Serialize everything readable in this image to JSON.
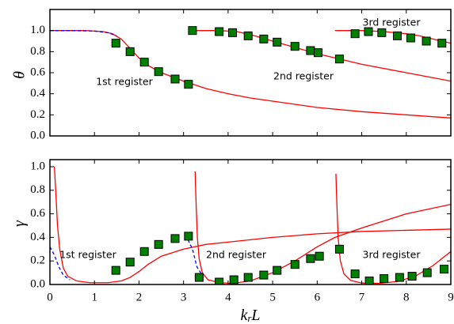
{
  "chart_data": [
    {
      "type": "line",
      "ylabel": "θ",
      "xlim": [
        0,
        9
      ],
      "ylim": [
        0,
        1.2
      ],
      "xticks": [
        0,
        1,
        2,
        3,
        4,
        5,
        6,
        7,
        8,
        9
      ],
      "yticks": [
        {
          "value": 0,
          "label": "0.0"
        },
        {
          "value": 0.2,
          "label": "0.2"
        },
        {
          "value": 0.4,
          "label": "0.4"
        },
        {
          "value": 0.6,
          "label": "0.6"
        },
        {
          "value": 0.8,
          "label": "0.8"
        },
        {
          "value": 1.0,
          "label": "1.0"
        }
      ],
      "annotations": [
        "1st register",
        "2nd register",
        "3rd register"
      ],
      "series": [
        {
          "style": "solid",
          "color": "#ff0000",
          "x": [
            0,
            0.8,
            1.2,
            1.4,
            1.6,
            1.8,
            2.0,
            2.2,
            2.5,
            3.0,
            3.5,
            4.0,
            4.5,
            5.0,
            5.5,
            6.0,
            7.0,
            8.0,
            9.0
          ],
          "values": [
            1.0,
            1.0,
            0.99,
            0.97,
            0.92,
            0.83,
            0.74,
            0.67,
            0.6,
            0.52,
            0.45,
            0.4,
            0.36,
            0.33,
            0.3,
            0.27,
            0.23,
            0.2,
            0.17
          ]
        },
        {
          "style": "dashed",
          "color": "#0000ff",
          "x": [
            0,
            0.5,
            1.0,
            1.3,
            1.5
          ],
          "values": [
            1.0,
            1.0,
            0.995,
            0.98,
            0.95
          ]
        },
        {
          "style": "solid",
          "color": "#ff0000",
          "x": [
            3.2,
            3.8,
            4.2,
            4.6,
            5.0,
            5.5,
            6.0,
            6.5,
            7.0,
            8.0,
            9.0
          ],
          "values": [
            1.0,
            1.0,
            0.99,
            0.95,
            0.9,
            0.84,
            0.78,
            0.73,
            0.68,
            0.6,
            0.52
          ]
        },
        {
          "style": "solid",
          "color": "#ff0000",
          "x": [
            6.4,
            7.0,
            7.5,
            8.0,
            8.3,
            8.6,
            9.0
          ],
          "values": [
            1.0,
            1.0,
            0.99,
            0.97,
            0.95,
            0.92,
            0.88
          ]
        },
        {
          "style": "square",
          "color": "#008000",
          "x": [
            1.48,
            1.8,
            2.12,
            2.44,
            2.81,
            3.11,
            3.2,
            3.8,
            4.1,
            4.45,
            4.8,
            5.1,
            5.5,
            5.85,
            6.02,
            6.5,
            6.85,
            7.15,
            7.45,
            7.8,
            8.1,
            8.45,
            8.8
          ],
          "values": [
            0.88,
            0.8,
            0.7,
            0.61,
            0.54,
            0.49,
            1.0,
            0.99,
            0.98,
            0.95,
            0.92,
            0.89,
            0.85,
            0.81,
            0.79,
            0.73,
            0.97,
            0.99,
            0.98,
            0.95,
            0.93,
            0.9,
            0.88
          ]
        }
      ]
    },
    {
      "type": "line",
      "ylabel": "γ",
      "xlabel": {
        "base": "k",
        "sub": "r",
        "rest": "L"
      },
      "xlim": [
        0,
        9
      ],
      "ylim": [
        0,
        1.06
      ],
      "xticks": [
        0,
        1,
        2,
        3,
        4,
        5,
        6,
        7,
        8,
        9
      ],
      "yticks": [
        {
          "value": 0,
          "label": "0.0"
        },
        {
          "value": 0.2,
          "label": "0.2"
        },
        {
          "value": 0.4,
          "label": "0.4"
        },
        {
          "value": 0.6,
          "label": "0.6"
        },
        {
          "value": 0.8,
          "label": "0.8"
        },
        {
          "value": 1.0,
          "label": "1.0"
        }
      ],
      "annotations": [
        "1st register",
        "2nd register",
        "3rd register"
      ],
      "series": [
        {
          "style": "solid",
          "color": "#ff0000",
          "x": [
            0.1,
            0.13,
            0.17,
            0.22,
            0.3,
            0.4,
            0.6,
            0.9,
            1.3,
            1.6,
            1.8,
            2.0,
            2.2,
            2.5,
            3.0,
            3.5,
            4.0,
            5.0,
            6.0,
            7.0,
            8.0,
            9.0
          ],
          "values": [
            1.0,
            0.8,
            0.5,
            0.3,
            0.14,
            0.07,
            0.03,
            0.015,
            0.015,
            0.03,
            0.06,
            0.11,
            0.17,
            0.24,
            0.3,
            0.34,
            0.36,
            0.4,
            0.43,
            0.45,
            0.46,
            0.47
          ]
        },
        {
          "style": "dashed",
          "color": "#0000ff",
          "x": [
            0,
            0.1,
            0.2,
            0.3,
            0.45
          ],
          "values": [
            0.32,
            0.25,
            0.15,
            0.08,
            0.04
          ]
        },
        {
          "style": "solid",
          "color": "#ff0000",
          "x": [
            3.26,
            3.28,
            3.31,
            3.35,
            3.42,
            3.55,
            3.8,
            4.1,
            4.5,
            5.0,
            5.5,
            6.0,
            6.4,
            7.0,
            8.0,
            9.0
          ],
          "values": [
            0.96,
            0.7,
            0.4,
            0.22,
            0.1,
            0.04,
            0.015,
            0.01,
            0.03,
            0.1,
            0.2,
            0.32,
            0.4,
            0.48,
            0.6,
            0.68
          ]
        },
        {
          "style": "dashed",
          "color": "#0000ff",
          "x": [
            3.1,
            3.2,
            3.3,
            3.45
          ],
          "values": [
            0.38,
            0.3,
            0.15,
            0.06
          ]
        },
        {
          "style": "solid",
          "color": "#ff0000",
          "x": [
            6.42,
            6.44,
            6.47,
            6.52,
            6.6,
            6.75,
            7.0,
            7.4,
            7.8,
            8.2,
            8.6,
            9.0
          ],
          "values": [
            0.94,
            0.7,
            0.4,
            0.2,
            0.09,
            0.035,
            0.012,
            0.01,
            0.025,
            0.07,
            0.16,
            0.28
          ]
        },
        {
          "style": "square",
          "color": "#008000",
          "x": [
            1.48,
            1.8,
            2.12,
            2.44,
            2.81,
            3.11,
            3.35,
            3.8,
            4.13,
            4.45,
            4.8,
            5.1,
            5.5,
            5.85,
            6.05,
            6.5,
            6.85,
            7.17,
            7.5,
            7.85,
            8.13,
            8.47,
            8.85
          ],
          "values": [
            0.12,
            0.19,
            0.28,
            0.34,
            0.39,
            0.41,
            0.06,
            0.02,
            0.04,
            0.06,
            0.08,
            0.12,
            0.17,
            0.22,
            0.24,
            0.3,
            0.09,
            0.03,
            0.05,
            0.06,
            0.07,
            0.1,
            0.13
          ]
        }
      ]
    }
  ]
}
